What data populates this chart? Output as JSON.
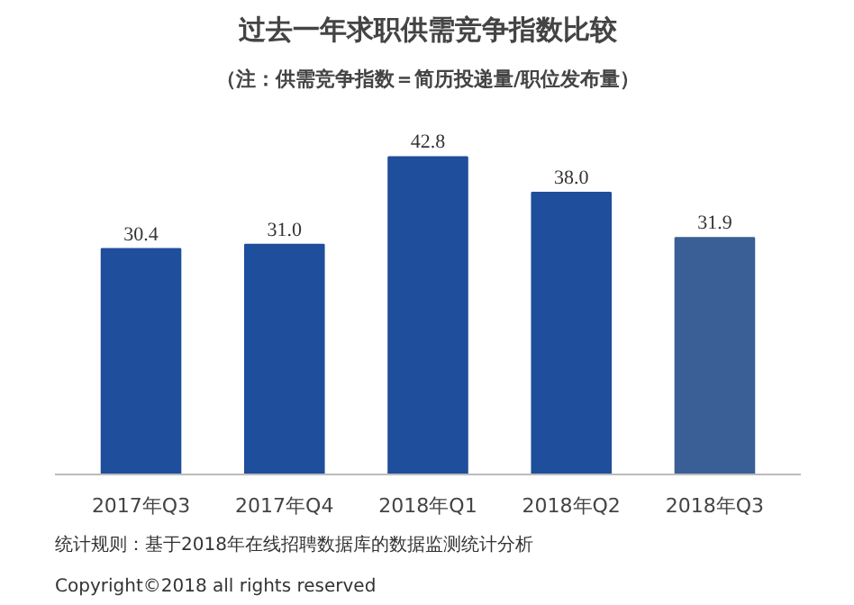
{
  "chart_data": {
    "type": "bar",
    "title": "过去一年求职供需竞争指数比较",
    "subtitle": "（注：供需竞争指数＝简历投递量/职位发布量）",
    "categories": [
      "2017年Q3",
      "2017年Q4",
      "2018年Q1",
      "2018年Q2",
      "2018年Q3"
    ],
    "values": [
      30.4,
      31.0,
      42.8,
      38.0,
      31.9
    ],
    "colors": [
      "#1f4e9c",
      "#1f4e9c",
      "#1f4e9c",
      "#1f4e9c",
      "#3a5f96"
    ],
    "value_labels": [
      "30.4",
      "31.0",
      "42.8",
      "38.0",
      "31.9"
    ],
    "grid": false,
    "annotations": [
      "统计规则：基于2018年在线招聘数据库的数据监测统计分析",
      "Copyright©2018 all rights reserved"
    ]
  }
}
